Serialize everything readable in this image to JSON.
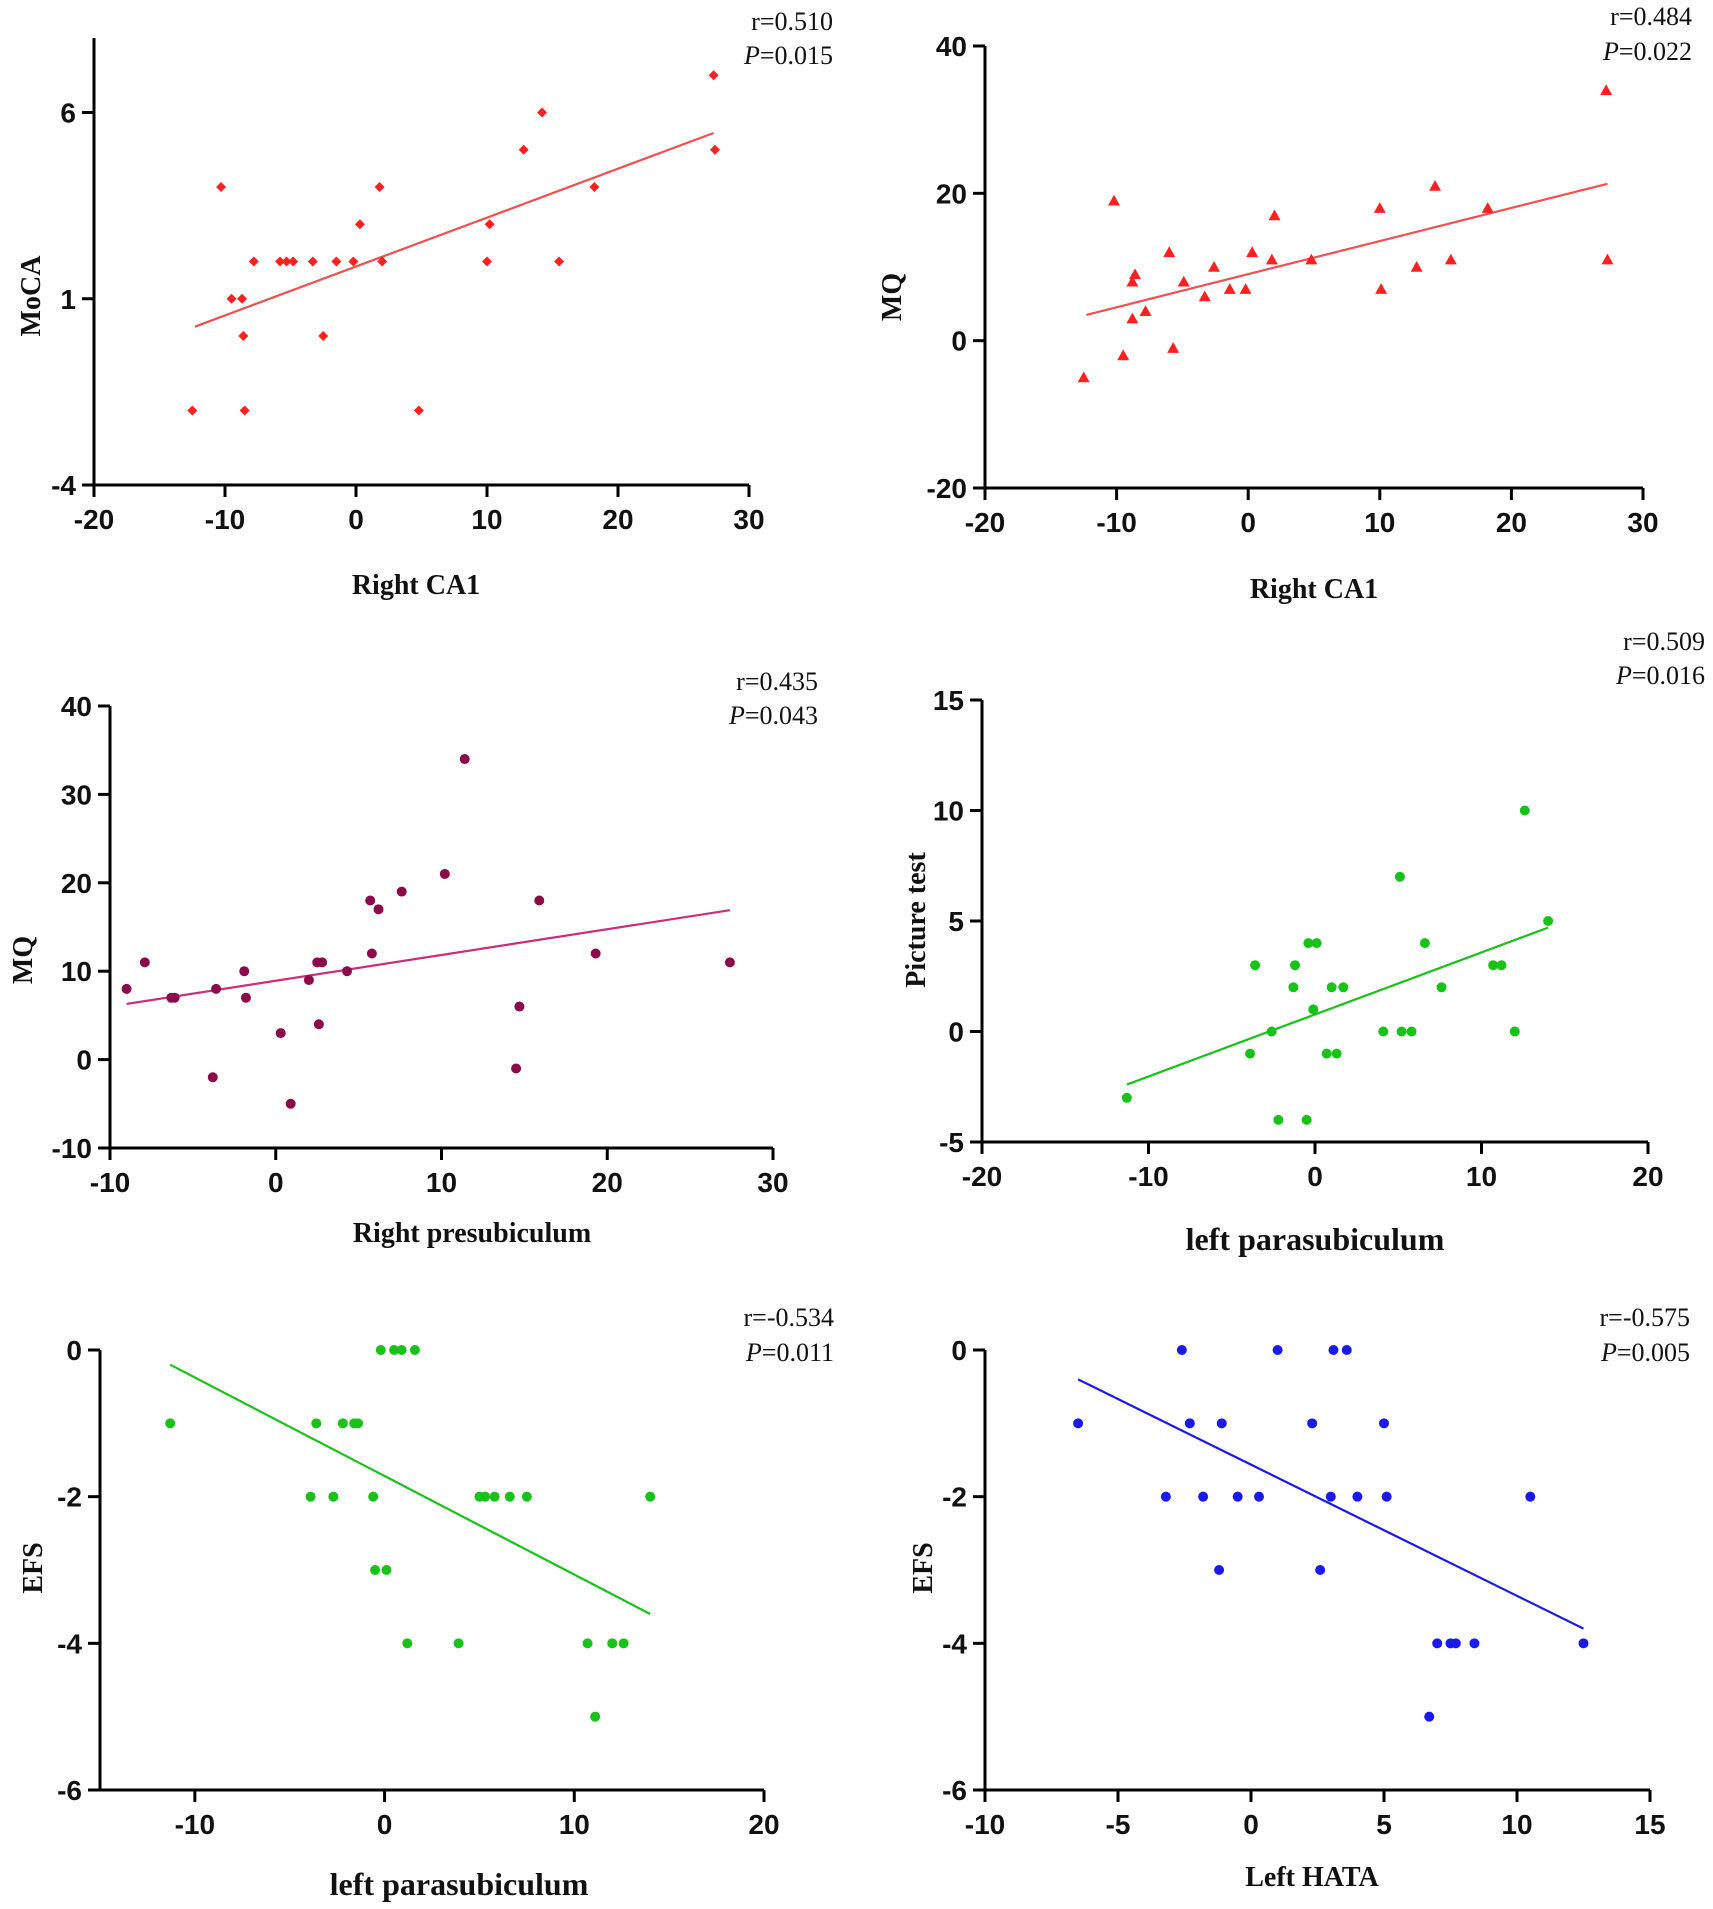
{
  "chart_data": [
    {
      "type": "scatter",
      "title": "",
      "xlabel": "Right CA1",
      "ylabel": "MoCA",
      "xlim": [
        -20,
        30
      ],
      "ylim": [
        -4,
        8
      ],
      "xticks": [
        -20,
        -10,
        0,
        10,
        20,
        30
      ],
      "yticks": [
        -4,
        1,
        6
      ],
      "marker": "diamond",
      "color": "#ff2020",
      "line_color": "#f05050",
      "stat_r": "r=0.510",
      "stat_p_letter": "P",
      "stat_p_value": "=0.015",
      "fit": [
        [
          -12.3,
          0.25
        ],
        [
          27.3,
          5.45
        ]
      ],
      "points": [
        [
          -12.5,
          -2
        ],
        [
          -10.3,
          4
        ],
        [
          -9.5,
          1
        ],
        [
          -8.7,
          1
        ],
        [
          -8.6,
          0
        ],
        [
          -8.5,
          -2
        ],
        [
          -7.8,
          2
        ],
        [
          -5.8,
          2
        ],
        [
          -5.3,
          2
        ],
        [
          -4.8,
          2
        ],
        [
          -3.3,
          2
        ],
        [
          -2.5,
          0
        ],
        [
          -1.5,
          2
        ],
        [
          -0.2,
          2
        ],
        [
          0.3,
          3
        ],
        [
          1.8,
          4
        ],
        [
          2.0,
          2
        ],
        [
          4.8,
          -2
        ],
        [
          10.0,
          2
        ],
        [
          10.2,
          3
        ],
        [
          12.8,
          5
        ],
        [
          14.2,
          6
        ],
        [
          15.5,
          2
        ],
        [
          18.2,
          4
        ],
        [
          27.3,
          7
        ],
        [
          27.4,
          5
        ]
      ]
    },
    {
      "type": "scatter",
      "title": "",
      "xlabel": "Right CA1",
      "ylabel": "MQ",
      "xlim": [
        -20,
        30
      ],
      "ylim": [
        -20,
        40
      ],
      "xticks": [
        -20,
        -10,
        0,
        10,
        20,
        30
      ],
      "yticks": [
        -20,
        0,
        20,
        40
      ],
      "marker": "triangle",
      "color": "#ff2020",
      "line_color": "#f05050",
      "stat_r": "r=0.484",
      "stat_p_letter": "P",
      "stat_p_value": "=0.022",
      "fit": [
        [
          -12.3,
          3.5
        ],
        [
          27.3,
          21.3
        ]
      ],
      "points": [
        [
          -12.5,
          -5
        ],
        [
          -10.2,
          19
        ],
        [
          -9.5,
          -2
        ],
        [
          -8.8,
          3
        ],
        [
          -8.8,
          8
        ],
        [
          -8.6,
          9
        ],
        [
          -7.8,
          4
        ],
        [
          -6.0,
          12
        ],
        [
          -5.7,
          -1
        ],
        [
          -4.9,
          8
        ],
        [
          -3.3,
          6
        ],
        [
          -2.6,
          10
        ],
        [
          -1.4,
          7
        ],
        [
          -0.2,
          7
        ],
        [
          0.3,
          12
        ],
        [
          1.8,
          11
        ],
        [
          2.0,
          17
        ],
        [
          4.8,
          11
        ],
        [
          10.0,
          18
        ],
        [
          10.1,
          7
        ],
        [
          12.8,
          10
        ],
        [
          14.2,
          21
        ],
        [
          15.4,
          11
        ],
        [
          18.2,
          18
        ],
        [
          27.2,
          34
        ],
        [
          27.3,
          11
        ]
      ]
    },
    {
      "type": "scatter",
      "title": "",
      "xlabel": "Right presubiculum",
      "ylabel": "MQ",
      "xlim": [
        -10,
        30
      ],
      "ylim": [
        -10,
        40
      ],
      "xticks": [
        -10,
        0,
        10,
        20,
        30
      ],
      "yticks": [
        -10,
        0,
        10,
        20,
        30,
        40
      ],
      "marker": "circle",
      "color": "#8b0a4a",
      "line_color": "#cc2d7a",
      "stat_r": "r=0.435",
      "stat_p_letter": "P",
      "stat_p_value": "=0.043",
      "fit": [
        [
          -9.0,
          6.3
        ],
        [
          27.4,
          16.9
        ]
      ],
      "points": [
        [
          -9.0,
          8
        ],
        [
          -7.9,
          11
        ],
        [
          -6.3,
          7
        ],
        [
          -6.1,
          7
        ],
        [
          -3.8,
          -2
        ],
        [
          -3.6,
          8
        ],
        [
          -1.9,
          10
        ],
        [
          -1.8,
          7
        ],
        [
          0.3,
          3
        ],
        [
          0.9,
          -5
        ],
        [
          2.0,
          9
        ],
        [
          2.5,
          11
        ],
        [
          2.6,
          4
        ],
        [
          2.8,
          11
        ],
        [
          4.3,
          10
        ],
        [
          5.7,
          18
        ],
        [
          5.8,
          12
        ],
        [
          6.2,
          17
        ],
        [
          7.6,
          19
        ],
        [
          10.2,
          21
        ],
        [
          11.4,
          34
        ],
        [
          14.5,
          -1
        ],
        [
          14.7,
          6
        ],
        [
          15.9,
          18
        ],
        [
          19.3,
          12
        ],
        [
          27.4,
          11
        ]
      ]
    },
    {
      "type": "scatter",
      "title": "",
      "xlabel": "left parasubiculum",
      "ylabel": "Picture test",
      "xlim": [
        -20,
        20
      ],
      "ylim": [
        -5,
        15
      ],
      "xticks": [
        -20,
        -10,
        0,
        10,
        20
      ],
      "yticks": [
        -5,
        0,
        5,
        10,
        15
      ],
      "marker": "circle",
      "color": "#19c219",
      "line_color": "#19c219",
      "stat_r": "r=0.509",
      "stat_p_letter": "P",
      "stat_p_value": "=0.016",
      "fit": [
        [
          -11.3,
          -2.4
        ],
        [
          14.0,
          4.7
        ]
      ],
      "points": [
        [
          -11.3,
          -3
        ],
        [
          -3.9,
          -1
        ],
        [
          -3.6,
          3
        ],
        [
          -2.6,
          0
        ],
        [
          -2.2,
          -4
        ],
        [
          -1.3,
          2
        ],
        [
          -1.2,
          3
        ],
        [
          -0.5,
          -4
        ],
        [
          -0.4,
          4
        ],
        [
          -0.1,
          1
        ],
        [
          0.1,
          4
        ],
        [
          0.7,
          -1
        ],
        [
          1.0,
          2
        ],
        [
          1.3,
          -1
        ],
        [
          1.7,
          2
        ],
        [
          4.1,
          0
        ],
        [
          5.1,
          7
        ],
        [
          5.2,
          0
        ],
        [
          5.8,
          0
        ],
        [
          6.6,
          4
        ],
        [
          7.6,
          2
        ],
        [
          10.7,
          3
        ],
        [
          11.2,
          3
        ],
        [
          12.0,
          0
        ],
        [
          12.6,
          10
        ],
        [
          14.0,
          5
        ]
      ]
    },
    {
      "type": "scatter",
      "title": "",
      "xlabel": "left parasubiculum",
      "ylabel": "EFS",
      "xlim": [
        -15,
        20
      ],
      "ylim": [
        -6,
        0
      ],
      "xticks": [
        -10,
        0,
        10,
        20
      ],
      "yticks": [
        -6,
        -4,
        -2,
        0
      ],
      "marker": "circle",
      "color": "#19c219",
      "line_color": "#19c219",
      "stat_r": "r=-0.534",
      "stat_p_letter": "P",
      "stat_p_value": "=0.011",
      "fit": [
        [
          -11.3,
          -0.2
        ],
        [
          14.0,
          -3.6
        ]
      ],
      "points": [
        [
          -11.3,
          -1
        ],
        [
          -3.9,
          -2
        ],
        [
          -3.6,
          -1
        ],
        [
          -2.7,
          -2
        ],
        [
          -2.2,
          -1
        ],
        [
          -1.6,
          -1
        ],
        [
          -1.4,
          -1
        ],
        [
          -0.6,
          -2
        ],
        [
          -0.5,
          -3
        ],
        [
          -0.2,
          0
        ],
        [
          0.1,
          -3
        ],
        [
          0.5,
          0
        ],
        [
          0.9,
          0
        ],
        [
          1.2,
          -4
        ],
        [
          1.6,
          0
        ],
        [
          3.9,
          -4
        ],
        [
          5.0,
          -2
        ],
        [
          5.3,
          -2
        ],
        [
          5.8,
          -2
        ],
        [
          6.6,
          -2
        ],
        [
          7.5,
          -2
        ],
        [
          10.7,
          -4
        ],
        [
          11.1,
          -5
        ],
        [
          12.0,
          -4
        ],
        [
          12.6,
          -4
        ],
        [
          14.0,
          -2
        ]
      ]
    },
    {
      "type": "scatter",
      "title": "",
      "xlabel": "Left HATA",
      "ylabel": "EFS",
      "xlim": [
        -10,
        15
      ],
      "ylim": [
        -6,
        0
      ],
      "xticks": [
        -10,
        -5,
        0,
        5,
        10,
        15
      ],
      "yticks": [
        -6,
        -4,
        -2,
        0
      ],
      "marker": "circle",
      "color": "#1a1aee",
      "line_color": "#1a1aee",
      "stat_r": "r=-0.575",
      "stat_p_letter": "P",
      "stat_p_value": "=0.005",
      "fit": [
        [
          -6.5,
          -0.4
        ],
        [
          12.5,
          -3.8
        ]
      ],
      "points": [
        [
          -6.5,
          -1
        ],
        [
          -3.2,
          -2
        ],
        [
          -2.6,
          0
        ],
        [
          -2.3,
          -1
        ],
        [
          -1.8,
          -2
        ],
        [
          -1.2,
          -3
        ],
        [
          -1.1,
          -1
        ],
        [
          -0.5,
          -2
        ],
        [
          0.3,
          -2
        ],
        [
          1.0,
          0
        ],
        [
          2.3,
          -1
        ],
        [
          2.6,
          -3
        ],
        [
          3.0,
          -2
        ],
        [
          3.1,
          0
        ],
        [
          3.6,
          0
        ],
        [
          4.0,
          -2
        ],
        [
          5.0,
          -1
        ],
        [
          5.1,
          -2
        ],
        [
          6.7,
          -5
        ],
        [
          7.0,
          -4
        ],
        [
          7.5,
          -4
        ],
        [
          7.7,
          -4
        ],
        [
          8.4,
          -4
        ],
        [
          10.5,
          -2
        ],
        [
          12.5,
          -4
        ]
      ]
    }
  ]
}
